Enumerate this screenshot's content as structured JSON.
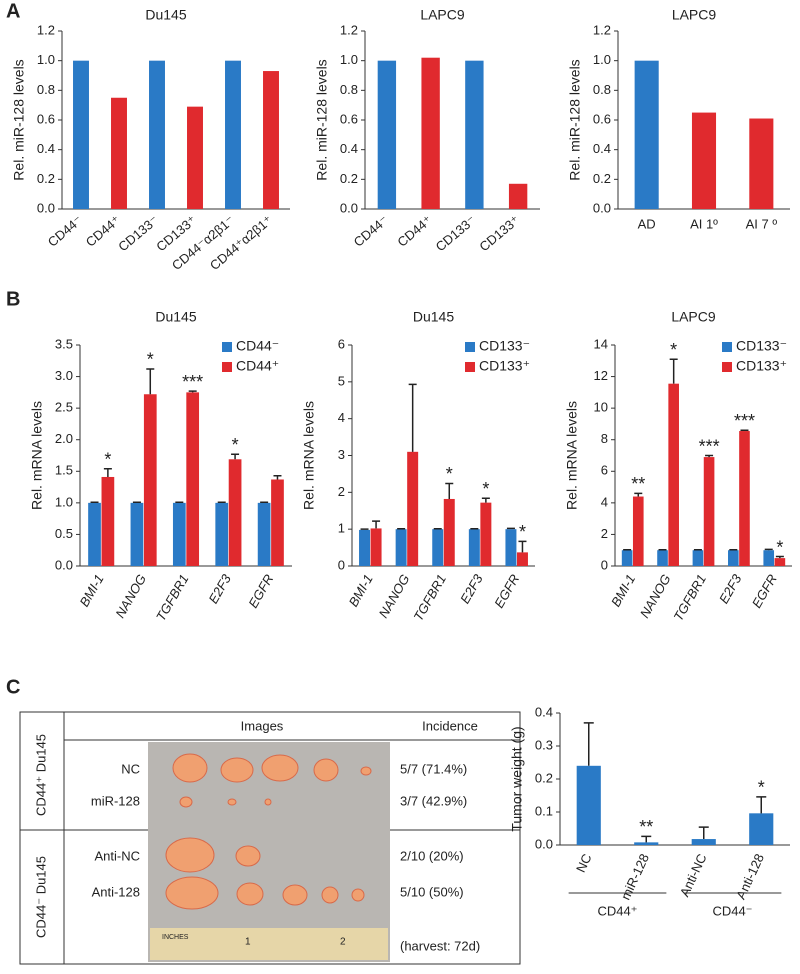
{
  "panels": [
    "A",
    "B",
    "C"
  ],
  "chart_data": [
    {
      "type": "bar",
      "title": "Du145",
      "ylabel": "Rel. miR-128 levels",
      "categories": [
        "CD44⁻",
        "CD44⁺",
        "CD133⁻",
        "CD133⁺",
        "CD44⁻α2β1⁻",
        "CD44⁺α2β1⁺"
      ],
      "values": [
        1.0,
        0.75,
        1.0,
        0.69,
        1.0,
        0.93
      ],
      "colors": [
        "#2a7ac6",
        "#e02a2e",
        "#2a7ac6",
        "#e02a2e",
        "#2a7ac6",
        "#e02a2e"
      ],
      "ylim": [
        0,
        1.2
      ],
      "yticks": [
        {
          "value": 0,
          "label": "0.0"
        },
        0.2,
        0.4,
        0.6,
        0.8,
        {
          "value": 1,
          "label": "1.0"
        },
        1.2
      ]
    },
    {
      "type": "bar",
      "title": "LAPC9",
      "ylabel": "Rel. miR-128 levels",
      "categories": [
        "CD44⁻",
        "CD44⁺",
        "CD133⁻",
        "CD133⁺"
      ],
      "values": [
        1.0,
        1.02,
        1.0,
        0.17
      ],
      "colors": [
        "#2a7ac6",
        "#e02a2e",
        "#2a7ac6",
        "#e02a2e"
      ],
      "ylim": [
        0,
        1.2
      ],
      "yticks": [
        {
          "value": 0,
          "label": "0.0"
        },
        0.2,
        0.4,
        0.6,
        0.8,
        {
          "value": 1,
          "label": "1.0"
        },
        1.2
      ]
    },
    {
      "type": "bar",
      "title": "LAPC9",
      "ylabel": "Rel. miR-128 levels",
      "categories": [
        "AD",
        "AI 1º",
        "AI 7 º"
      ],
      "values": [
        1.0,
        0.65,
        0.61
      ],
      "colors": [
        "#2a7ac6",
        "#e02a2e",
        "#e02a2e"
      ],
      "ylim": [
        0,
        1.2
      ],
      "yticks": [
        {
          "value": 0,
          "label": "0.0"
        },
        0.2,
        0.4,
        0.6,
        0.8,
        {
          "value": 1,
          "label": "1.0"
        },
        1.2
      ]
    },
    {
      "type": "grouped_bar",
      "title": "Du145",
      "ylabel": "Rel. mRNA levels",
      "italic_categories": true,
      "categories": [
        "BMI-1",
        "NANOG",
        "TGFBR1",
        "E2F3",
        "EGFR"
      ],
      "series": [
        {
          "name": "CD44⁻",
          "color": "#2a7ac6",
          "values": [
            1,
            1,
            1,
            1,
            1
          ],
          "errors": [
            0.01,
            0.01,
            0.01,
            0.01,
            0.01
          ]
        },
        {
          "name": "CD44⁺",
          "color": "#e02a2e",
          "values": [
            1.41,
            2.72,
            2.75,
            1.69,
            1.37
          ],
          "errors": [
            0.13,
            0.4,
            0.02,
            0.08,
            0.06
          ]
        }
      ],
      "annotations": [
        "*",
        "*",
        "***",
        "*",
        null
      ],
      "ylim": [
        0,
        3.5
      ],
      "yticks": [
        {
          "value": 0,
          "label": "0.0"
        },
        0.5,
        {
          "value": 1,
          "label": "1.0"
        },
        1.5,
        {
          "value": 2,
          "label": "2.0"
        },
        2.5,
        {
          "value": 3,
          "label": "3.0"
        },
        3.5
      ]
    },
    {
      "type": "grouped_bar",
      "title": "Du145",
      "ylabel": "Rel. mRNA levels",
      "italic_categories": true,
      "categories": [
        "BMI-1",
        "NANOG",
        "TGFBR1",
        "E2F3",
        "EGFR"
      ],
      "series": [
        {
          "name": "CD133⁻",
          "color": "#2a7ac6",
          "values": [
            0.98,
            1,
            1,
            1,
            1
          ],
          "errors": [
            0.02,
            0.01,
            0.01,
            0.01,
            0.02
          ]
        },
        {
          "name": "CD133⁺",
          "color": "#e02a2e",
          "values": [
            1.02,
            3.1,
            1.82,
            1.72,
            0.37
          ],
          "errors": [
            0.2,
            1.83,
            0.42,
            0.12,
            0.3
          ]
        }
      ],
      "annotations": [
        null,
        null,
        "*",
        "*",
        "*"
      ],
      "ylim": [
        0,
        6
      ],
      "yticks": [
        0,
        1,
        2,
        3,
        4,
        5,
        6
      ]
    },
    {
      "type": "grouped_bar",
      "title": "LAPC9",
      "ylabel": "Rel. mRNA levels",
      "italic_categories": true,
      "categories": [
        "BMI-1",
        "NANOG",
        "TGFBR1",
        "E2F3",
        "EGFR"
      ],
      "series": [
        {
          "name": "CD133⁻",
          "color": "#2a7ac6",
          "values": [
            1,
            1,
            1,
            1,
            1
          ],
          "errors": [
            0.03,
            0.03,
            0.03,
            0.03,
            0.05
          ]
        },
        {
          "name": "CD133⁺",
          "color": "#e02a2e",
          "values": [
            4.4,
            11.55,
            6.9,
            8.55,
            0.5
          ],
          "errors": [
            0.2,
            1.55,
            0.1,
            0.05,
            0.1
          ]
        }
      ],
      "annotations": [
        "**",
        "*",
        "***",
        "***",
        "*"
      ],
      "ylim": [
        0,
        14
      ],
      "yticks": [
        0,
        2,
        4,
        6,
        8,
        10,
        12,
        14
      ]
    },
    {
      "type": "bar",
      "ylabel": "Tumor weight (g)",
      "categories": [
        "NC",
        "miR-128",
        "Anti-NC",
        "Anti-128"
      ],
      "values": [
        0.24,
        0.008,
        0.018,
        0.096
      ],
      "errors": [
        0.13,
        0.018,
        0.036,
        0.05
      ],
      "color": "#2a7ac6",
      "annotations": [
        null,
        "**",
        null,
        "*"
      ],
      "group_labels": [
        "CD44⁺",
        "CD44⁻"
      ],
      "ylim": [
        0,
        0.4
      ],
      "yticks": [
        {
          "value": 0,
          "label": "0.0"
        },
        0.1,
        0.2,
        0.3,
        0.4
      ]
    }
  ],
  "table": {
    "column_headers": [
      "Images",
      "Incidence"
    ],
    "groups": [
      {
        "label": "CD44⁺ Du145",
        "rows": [
          [
            "NC",
            "5/7 (71.4%)"
          ],
          [
            "miR-128",
            "3/7 (42.9%)"
          ]
        ]
      },
      {
        "label": "CD44⁻ Du145",
        "rows": [
          [
            "Anti-NC",
            "2/10 (20%)"
          ],
          [
            "Anti-128",
            "5/10 (50%)"
          ]
        ]
      }
    ],
    "note": "(harvest: 72d)",
    "ruler_labels": [
      "INCHES",
      "1",
      "2"
    ]
  }
}
